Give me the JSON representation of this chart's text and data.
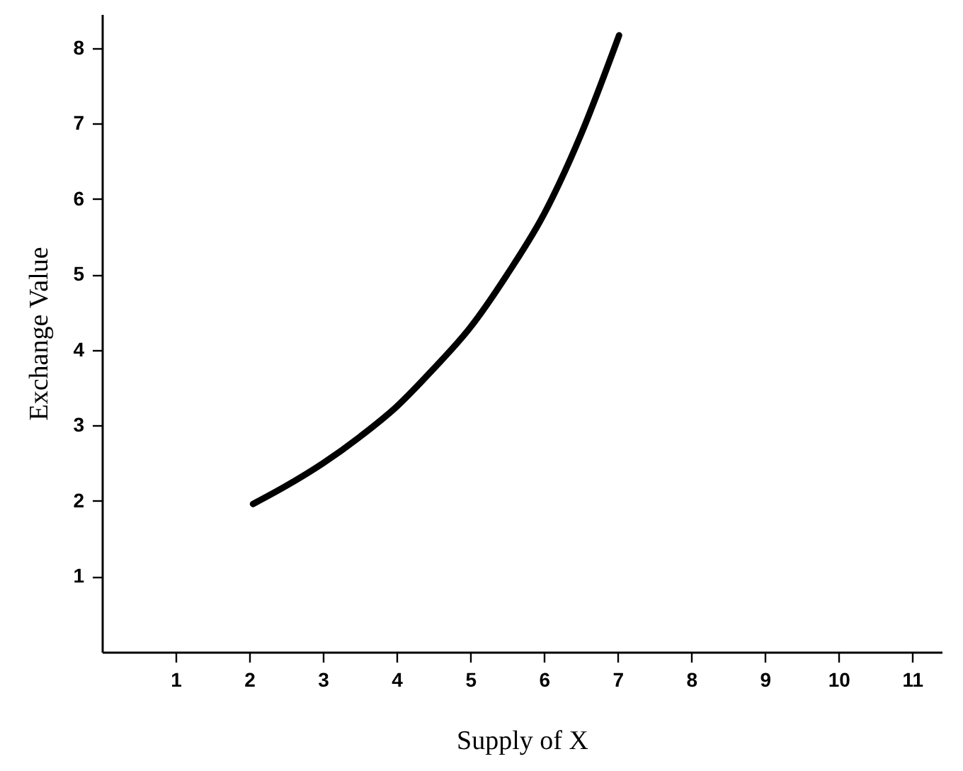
{
  "chart_data": {
    "type": "line",
    "xlabel": "Supply of X",
    "ylabel": "Exchange Value",
    "x": [
      2.05,
      2.5,
      3,
      3.5,
      4,
      4.5,
      5,
      5.5,
      6,
      6.5,
      7.02
    ],
    "series": [
      {
        "color": "#000000",
        "values": [
          1.96,
          2.2,
          2.5,
          2.85,
          3.25,
          3.75,
          4.3,
          5.0,
          5.8,
          6.85,
          8.17
        ]
      }
    ],
    "xlim": [
      0,
      11.4
    ],
    "ylim": [
      0,
      8.45
    ],
    "xticks": [
      1,
      2,
      3,
      4,
      5,
      6,
      7,
      8,
      9,
      10,
      11
    ],
    "yticks": [
      1,
      2,
      3,
      4,
      5,
      6,
      7,
      8
    ],
    "grid": false,
    "marker": "none",
    "line_style": "solid"
  }
}
